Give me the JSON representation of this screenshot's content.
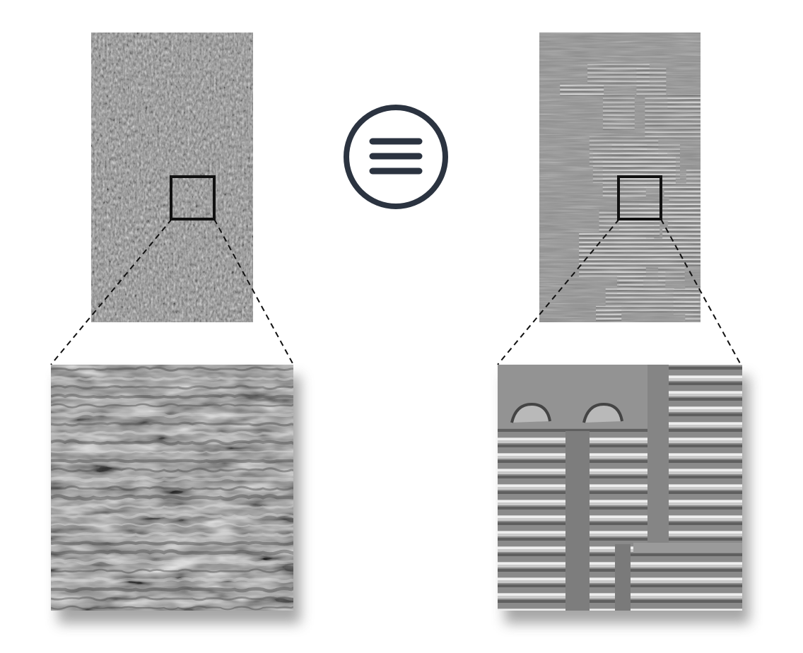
{
  "figure": {
    "center_symbol": {
      "icon": "equivalence-icon",
      "color": "#2b3340"
    },
    "panels": [
      {
        "id": "left",
        "texture": "rough-wavy-surface",
        "background": "#8c8c8c",
        "zoom_texture": "wavy-ripples"
      },
      {
        "id": "right",
        "texture": "terraced-stepped-surface",
        "background": "#8f8f8f",
        "zoom_texture": "stripe-terraces"
      }
    ],
    "colors": {
      "frame": "#111111",
      "connector": "#111111",
      "shadow": "#6b6b6b"
    }
  }
}
